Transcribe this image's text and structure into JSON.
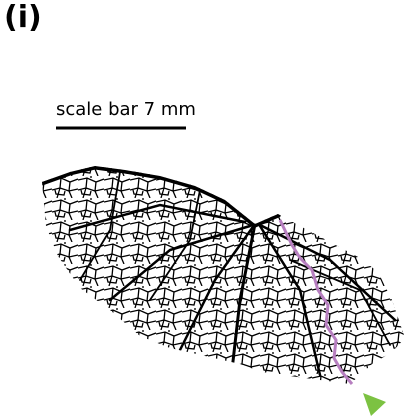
{
  "panel": {
    "label": "(i)",
    "scale_bar": "scale bar 7 mm"
  }
}
